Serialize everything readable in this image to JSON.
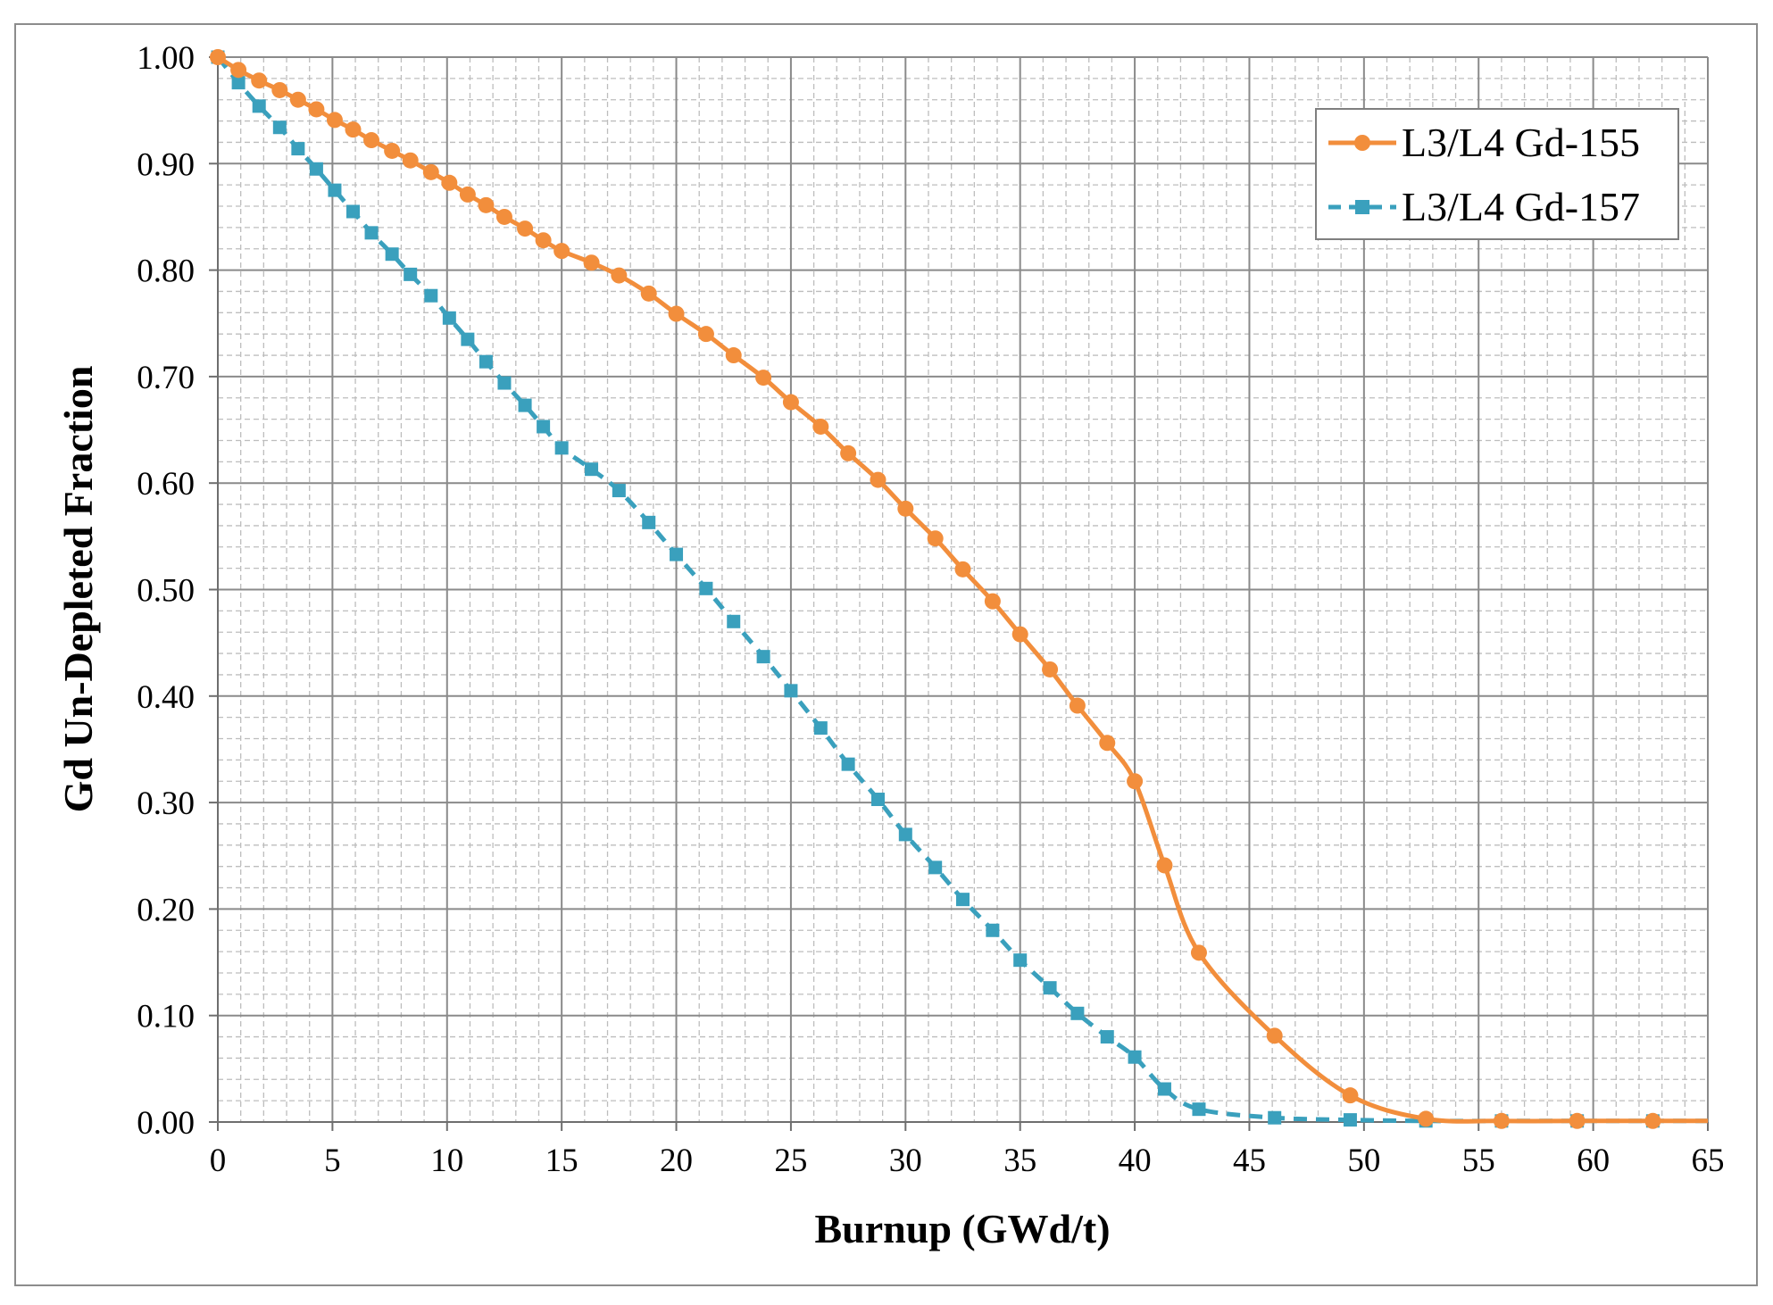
{
  "chart_data": {
    "type": "line",
    "xlabel": "Burnup (GWd/t)",
    "ylabel": "Gd Un-Depleted Fraction",
    "xlim": [
      0,
      65
    ],
    "ylim": [
      0,
      1
    ],
    "x_ticks": [
      "0",
      "5",
      "10",
      "15",
      "20",
      "25",
      "30",
      "35",
      "40",
      "45",
      "50",
      "55",
      "60",
      "65"
    ],
    "y_ticks": [
      "0.00",
      "0.10",
      "0.20",
      "0.30",
      "0.40",
      "0.50",
      "0.60",
      "0.70",
      "0.80",
      "0.90",
      "1.00"
    ],
    "grid": true,
    "minor_grid": true,
    "legend_position": "top-right",
    "series": [
      {
        "name": "L3/L4 Gd-155",
        "color": "#f28e3c",
        "marker": "circle",
        "line_style": "solid",
        "x": [
          0,
          0.9,
          1.8,
          2.7,
          3.5,
          4.3,
          5.1,
          5.9,
          6.7,
          7.6,
          8.4,
          9.3,
          10.1,
          10.9,
          11.7,
          12.5,
          13.4,
          14.2,
          15.0,
          16.3,
          17.5,
          18.8,
          20.0,
          21.3,
          22.5,
          23.8,
          25.0,
          26.3,
          27.5,
          28.8,
          30.0,
          31.3,
          32.5,
          33.8,
          35.0,
          36.3,
          37.5,
          38.8,
          40.0,
          41.3,
          42.8,
          46.1,
          49.4,
          52.7,
          56.0,
          59.3,
          62.6
        ],
        "y": [
          1.0,
          0.988,
          0.978,
          0.969,
          0.96,
          0.951,
          0.941,
          0.932,
          0.922,
          0.912,
          0.903,
          0.892,
          0.882,
          0.871,
          0.861,
          0.85,
          0.839,
          0.828,
          0.818,
          0.807,
          0.795,
          0.778,
          0.759,
          0.74,
          0.72,
          0.699,
          0.676,
          0.653,
          0.628,
          0.603,
          0.576,
          0.548,
          0.519,
          0.489,
          0.458,
          0.425,
          0.391,
          0.356,
          0.32,
          0.241,
          0.159,
          0.081,
          0.025,
          0.003,
          0.001,
          0.001,
          0.001
        ]
      },
      {
        "name": "L3/L4 Gd-157",
        "color": "#3aa0bd",
        "marker": "square",
        "line_style": "dashed",
        "x": [
          0,
          0.9,
          1.8,
          2.7,
          3.5,
          4.3,
          5.1,
          5.9,
          6.7,
          7.6,
          8.4,
          9.3,
          10.1,
          10.9,
          11.7,
          12.5,
          13.4,
          14.2,
          15.0,
          16.3,
          17.5,
          18.8,
          20.0,
          21.3,
          22.5,
          23.8,
          25.0,
          26.3,
          27.5,
          28.8,
          30.0,
          31.3,
          32.5,
          33.8,
          35.0,
          36.3,
          37.5,
          38.8,
          40.0,
          41.3,
          42.8,
          46.1,
          49.4,
          52.7,
          56.0,
          59.3,
          62.6
        ],
        "y": [
          1.0,
          0.976,
          0.954,
          0.934,
          0.914,
          0.895,
          0.875,
          0.855,
          0.835,
          0.815,
          0.796,
          0.776,
          0.755,
          0.735,
          0.714,
          0.694,
          0.673,
          0.653,
          0.633,
          0.613,
          0.593,
          0.563,
          0.533,
          0.501,
          0.47,
          0.437,
          0.405,
          0.37,
          0.336,
          0.303,
          0.27,
          0.239,
          0.209,
          0.18,
          0.152,
          0.126,
          0.102,
          0.08,
          0.061,
          0.031,
          0.012,
          0.004,
          0.002,
          0.001,
          0.001,
          0.001,
          0.001
        ]
      }
    ]
  }
}
